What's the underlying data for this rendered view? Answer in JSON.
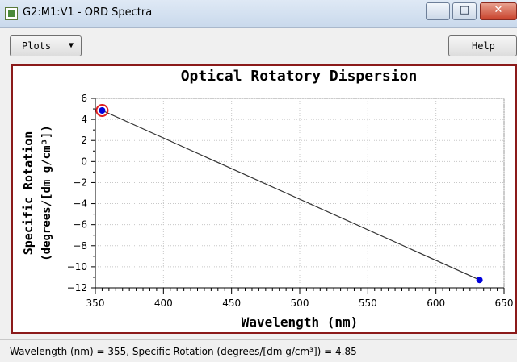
{
  "window": {
    "title": "G2:M1:V1 - ORD Spectra",
    "minimize_glyph": "—",
    "maximize_glyph": "□",
    "close_glyph": "✕"
  },
  "toolbar": {
    "plots_label": "Plots",
    "plots_arrow": "▼",
    "help_label": "Help"
  },
  "status": {
    "text": "Wavelength (nm) = 355, Specific Rotation (degrees/[dm g/cm³]) = 4.85"
  },
  "colors": {
    "frame": "#8b1a1a",
    "point": "#0000dd",
    "marker_ring": "#e02020",
    "line": "#333333"
  },
  "chart_data": {
    "type": "line",
    "title": "Optical Rotatory Dispersion",
    "xlabel": "Wavelength (nm)",
    "ylabel_line1": "Specific Rotation",
    "ylabel_line2": "(degrees/[dm g/cm³])",
    "xlim": [
      350,
      650
    ],
    "ylim": [
      -12,
      6
    ],
    "xticks": [
      350,
      400,
      450,
      500,
      550,
      600,
      650
    ],
    "yticks": [
      6,
      4,
      2,
      0,
      -2,
      -4,
      -6,
      -8,
      -10,
      -12
    ],
    "grid": true,
    "series": [
      {
        "x": [
          355,
          632
        ],
        "y": [
          4.85,
          -11.25
        ]
      }
    ],
    "selected_point": {
      "x": 355,
      "y": 4.85
    }
  }
}
